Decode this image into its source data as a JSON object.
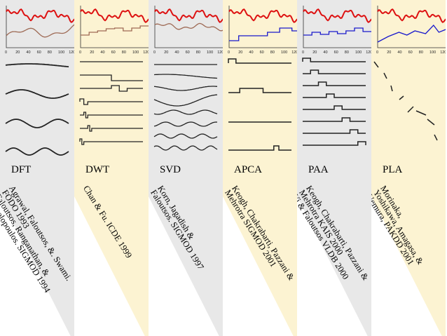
{
  "columns": [
    {
      "method": "DFT",
      "bg": "#e8e8e8",
      "ticks": [
        "0",
        "20",
        "40",
        "60",
        "80",
        "100",
        "120"
      ],
      "approx_color": "#9e6a55",
      "reference": [
        "Agrawal, Faloutsos, &. Swami.",
        "FODO 1993",
        "Faloutsos, Ranganathan, &",
        "Manolopoulos. SIGMOD 1994"
      ]
    },
    {
      "method": "DWT",
      "bg": "#fcf3d2",
      "ticks": [
        "0",
        "20",
        "40",
        "60",
        "80",
        "100",
        "120"
      ],
      "approx_color": "#9e6a55",
      "reference": [
        "Chan & Fu. ICDE 1999"
      ]
    },
    {
      "method": "SVD",
      "bg": "#e8e8e8",
      "ticks": [
        "0",
        "20",
        "40",
        "60",
        "80",
        "100",
        "120"
      ],
      "approx_color": "#9e6a55",
      "reference": [
        "Korn, Jagadish &",
        "Faloutsos. SIGMOD 1997"
      ]
    },
    {
      "method": "APCA",
      "bg": "#fcf3d2",
      "ticks": [
        "0",
        "20",
        "40",
        "60",
        "80",
        "100",
        "120"
      ],
      "approx_color": "#1a1acc",
      "reference": [
        "Keogh, Chakrabarti, Pazzani &",
        "Mehrotra SIGMOD 2001"
      ]
    },
    {
      "method": "PAA",
      "bg": "#e8e8e8",
      "ticks": [
        "0",
        "20",
        "40",
        "60",
        "80",
        "100",
        "120"
      ],
      "approx_color": "#1a1acc",
      "reference": [
        "Keogh, Chakrabarti, Pazzani &",
        "Mehrotra KAIS 2000",
        "Yi & Faloutsos VLDB 2000"
      ]
    },
    {
      "method": "PLA",
      "bg": "#fcf3d2",
      "ticks": [
        "0",
        "20",
        "40",
        "60",
        "80",
        "100",
        "120"
      ],
      "approx_color": "#1a1acc",
      "reference": [
        "Morinaka,",
        "Yoshikawa, Amagasa, &",
        "Uemura, PAKDD 2001"
      ]
    }
  ],
  "colors": {
    "signal": "#dd1111",
    "basis": "#222222"
  }
}
